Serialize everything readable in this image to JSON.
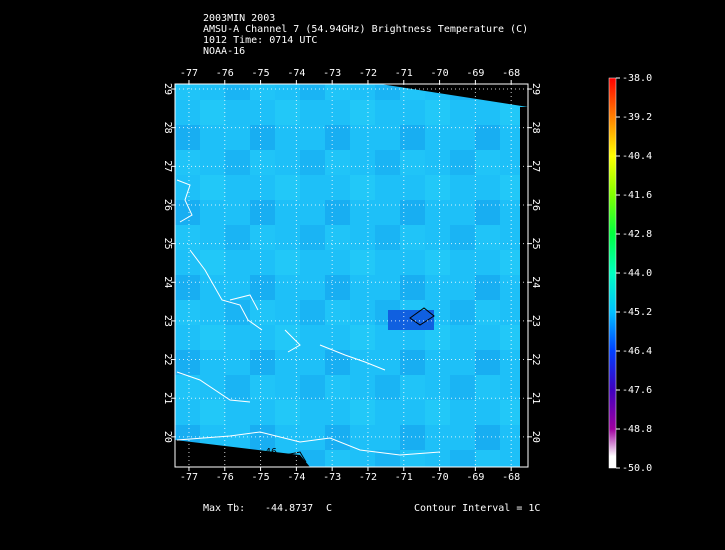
{
  "header": {
    "lines": [
      "2003MIN 2003",
      "AMSU-A Channel 7 (54.94GHz) Brightness Temperature (C)",
      "1012 Time: 0714 UTC",
      "NOAA-16"
    ]
  },
  "chart_data": {
    "type": "map",
    "xlim": [
      -77.39,
      -67.53
    ],
    "ylim": [
      19.22,
      29.13
    ],
    "xticks": [
      -77,
      -76,
      -75,
      -74,
      -73,
      -72,
      -71,
      -70,
      -69,
      -68
    ],
    "yticks": [
      20,
      21,
      22,
      23,
      24,
      25,
      26,
      27,
      28,
      29
    ],
    "grid": true,
    "contour_label": "-46",
    "colorbar": {
      "lim": [
        -50,
        -38
      ],
      "ticks": [
        {
          "value": -38,
          "label": "-38.0"
        },
        {
          "value": -39.2,
          "label": "-39.2"
        },
        {
          "value": -40.4,
          "label": "-40.4"
        },
        {
          "value": -41.6,
          "label": "-41.6"
        },
        {
          "value": -42.8,
          "label": "-42.8"
        },
        {
          "value": -44,
          "label": "-44.0"
        },
        {
          "value": -45.2,
          "label": "-45.2"
        },
        {
          "value": -46.4,
          "label": "-46.4"
        },
        {
          "value": -47.6,
          "label": "-47.6"
        },
        {
          "value": -48.8,
          "label": "-48.8"
        },
        {
          "value": -50,
          "label": "-50.0"
        }
      ]
    }
  },
  "footer": {
    "max_label": "Max Tb:",
    "max_value": -44.8737,
    "max_unit": "C",
    "contour_interval": "Contour Interval = 1C"
  }
}
